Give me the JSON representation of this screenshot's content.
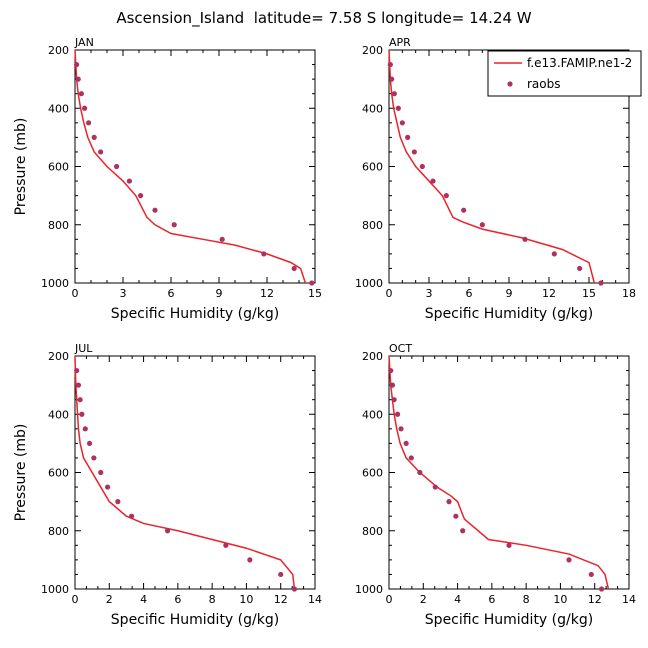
{
  "figure_title": "Ascension_Island  latitude= 7.58 S longitude= 14.24 W",
  "legend": {
    "model_label": "f.e13.FAMIP.ne1-2",
    "obs_label": "raobs",
    "model_color": "#e8242b",
    "obs_color": "#b03060"
  },
  "chart_data": [
    {
      "type": "line",
      "panel_label": "JAN",
      "xlabel": "Specific Humidity (g/kg)",
      "ylabel": "Pressure (mb)",
      "xlim": [
        0,
        15
      ],
      "xticks": [
        0,
        3,
        6,
        9,
        12,
        15
      ],
      "ylim": [
        1000,
        200
      ],
      "yticks": [
        200,
        400,
        600,
        800,
        1000
      ],
      "series": [
        {
          "name": "f.e13.FAMIP.ne1-2",
          "style": "line",
          "x": [
            0,
            0.05,
            0.1,
            0.2,
            0.35,
            0.55,
            0.8,
            1.2,
            2.0,
            3.0,
            3.8,
            4.5,
            5.0,
            6.0,
            8.0,
            10.0,
            12.0,
            13.5,
            14.1,
            14.4
          ],
          "y": [
            200,
            250,
            300,
            350,
            400,
            450,
            500,
            550,
            600,
            650,
            700,
            775,
            800,
            830,
            850,
            870,
            900,
            930,
            950,
            1000
          ]
        },
        {
          "name": "raobs",
          "style": "markers",
          "x": [
            0.1,
            0.2,
            0.4,
            0.6,
            0.85,
            1.2,
            1.6,
            2.6,
            3.4,
            4.1,
            5.0,
            6.2,
            9.2,
            11.8,
            13.7,
            14.8
          ],
          "y": [
            250,
            300,
            350,
            400,
            450,
            500,
            550,
            600,
            650,
            700,
            750,
            800,
            850,
            900,
            950,
            1000
          ]
        }
      ]
    },
    {
      "type": "line",
      "panel_label": "APR",
      "xlabel": "Specific Humidity (g/kg)",
      "ylabel": "",
      "xlim": [
        0,
        18
      ],
      "xticks": [
        0,
        3,
        6,
        9,
        12,
        15,
        18
      ],
      "ylim": [
        1000,
        200
      ],
      "yticks": [
        200,
        400,
        600,
        800,
        1000
      ],
      "series": [
        {
          "name": "f.e13.FAMIP.ne1-2",
          "style": "line",
          "x": [
            0,
            0.05,
            0.1,
            0.2,
            0.35,
            0.6,
            0.85,
            1.3,
            2.0,
            3.0,
            4.0,
            4.8,
            5.5,
            7.0,
            10.0,
            13.0,
            15.0,
            15.4
          ],
          "y": [
            200,
            250,
            300,
            350,
            400,
            450,
            500,
            550,
            600,
            650,
            700,
            775,
            790,
            815,
            845,
            885,
            930,
            1000
          ]
        },
        {
          "name": "raobs",
          "style": "markers",
          "x": [
            0.1,
            0.2,
            0.4,
            0.7,
            1.0,
            1.4,
            1.9,
            2.5,
            3.3,
            4.3,
            5.6,
            7.0,
            10.2,
            12.4,
            14.3,
            15.9
          ],
          "y": [
            250,
            300,
            350,
            400,
            450,
            500,
            550,
            600,
            650,
            700,
            750,
            800,
            850,
            900,
            950,
            1000
          ]
        }
      ]
    },
    {
      "type": "line",
      "panel_label": "JUL",
      "xlabel": "Specific Humidity (g/kg)",
      "ylabel": "Pressure (mb)",
      "xlim": [
        0,
        14
      ],
      "xticks": [
        0,
        2,
        4,
        6,
        8,
        10,
        12,
        14
      ],
      "ylim": [
        1000,
        200
      ],
      "yticks": [
        200,
        400,
        600,
        800,
        1000
      ],
      "series": [
        {
          "name": "f.e13.FAMIP.ne1-2",
          "style": "line",
          "x": [
            0,
            0.02,
            0.05,
            0.1,
            0.15,
            0.2,
            0.3,
            0.5,
            1.0,
            1.5,
            2.0,
            3.0,
            4.0,
            6.0,
            8.0,
            10.0,
            12.0,
            12.7,
            12.8
          ],
          "y": [
            200,
            250,
            300,
            350,
            400,
            450,
            500,
            550,
            600,
            650,
            700,
            750,
            775,
            800,
            830,
            860,
            900,
            950,
            1000
          ]
        },
        {
          "name": "raobs",
          "style": "markers",
          "x": [
            0.1,
            0.2,
            0.3,
            0.4,
            0.6,
            0.85,
            1.1,
            1.5,
            1.9,
            2.5,
            3.3,
            5.4,
            8.8,
            10.2,
            12.0,
            12.8
          ],
          "y": [
            250,
            300,
            350,
            400,
            450,
            500,
            550,
            600,
            650,
            700,
            750,
            800,
            850,
            900,
            950,
            1000
          ]
        }
      ]
    },
    {
      "type": "line",
      "panel_label": "OCT",
      "xlabel": "Specific Humidity (g/kg)",
      "ylabel": "",
      "xlim": [
        0,
        14
      ],
      "xticks": [
        0,
        2,
        4,
        6,
        8,
        10,
        12,
        14
      ],
      "ylim": [
        1000,
        200
      ],
      "yticks": [
        200,
        400,
        600,
        800,
        1000
      ],
      "series": [
        {
          "name": "f.e13.FAMIP.ne1-2",
          "style": "line",
          "x": [
            0,
            0.05,
            0.1,
            0.2,
            0.3,
            0.45,
            0.65,
            1.0,
            1.8,
            2.8,
            3.6,
            4.0,
            4.4,
            5.8,
            8.0,
            10.5,
            12.2,
            12.6,
            12.8
          ],
          "y": [
            200,
            250,
            300,
            350,
            400,
            450,
            500,
            550,
            600,
            650,
            680,
            700,
            760,
            830,
            850,
            880,
            920,
            950,
            1000
          ]
        },
        {
          "name": "raobs",
          "style": "markers",
          "x": [
            0.1,
            0.2,
            0.3,
            0.5,
            0.7,
            1.0,
            1.3,
            1.8,
            2.7,
            3.5,
            3.9,
            4.3,
            7.0,
            10.5,
            11.8,
            12.4
          ],
          "y": [
            250,
            300,
            350,
            400,
            450,
            500,
            550,
            600,
            650,
            700,
            750,
            800,
            850,
            900,
            950,
            1000
          ]
        }
      ]
    }
  ]
}
